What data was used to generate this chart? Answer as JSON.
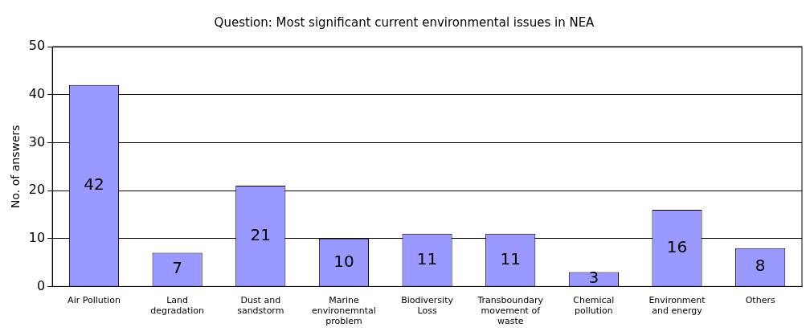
{
  "chart_data": {
    "type": "bar",
    "title": "Question: Most significant current environmental issues in NEA",
    "ylabel": "No. of answers",
    "categories": [
      "Air Pollution",
      "Land degradation",
      "Dust and sandstorm",
      "Marine environemntal problem",
      "Biodiversity Loss",
      "Transboundary movement of waste",
      "Chemical pollution",
      "Environment and energy",
      "Others"
    ],
    "values": [
      42,
      7,
      21,
      10,
      11,
      11,
      3,
      16,
      8
    ],
    "color": "#9999ff",
    "ylim": [
      0,
      50
    ],
    "yticks": [
      0,
      10,
      20,
      30,
      40,
      50
    ],
    "grid": "y",
    "legend": false,
    "data_labels": true
  }
}
